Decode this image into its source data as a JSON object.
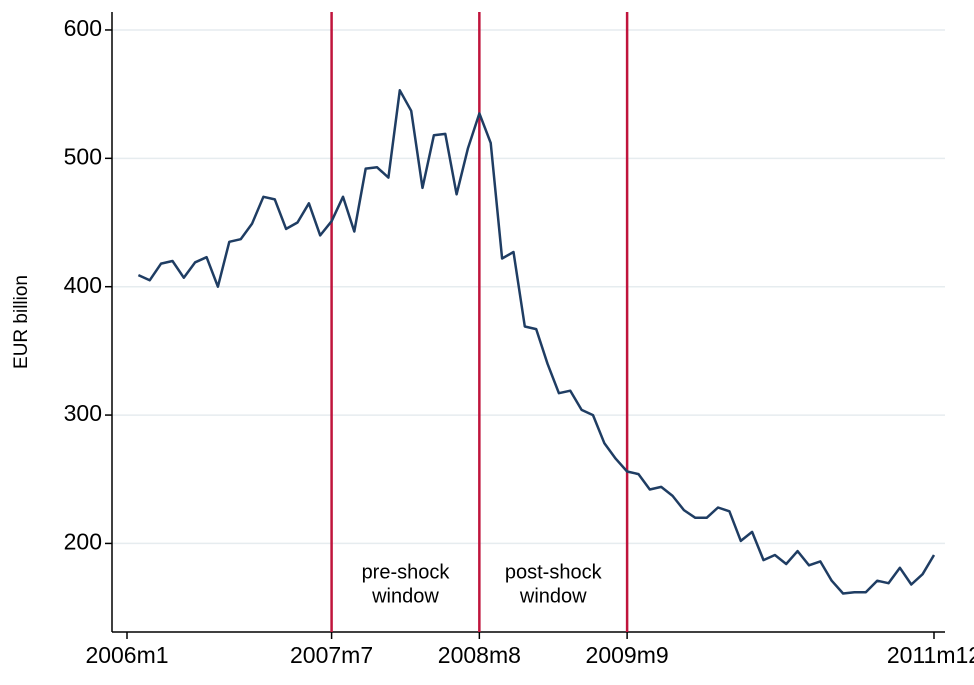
{
  "chart_data": {
    "type": "line",
    "y_label": "EUR billion",
    "categories": [
      "2006m1",
      null,
      null,
      null,
      null,
      null,
      null,
      null,
      null,
      null,
      null,
      null,
      null,
      null,
      null,
      null,
      null,
      null,
      "2007m7",
      null,
      null,
      null,
      null,
      null,
      null,
      null,
      null,
      null,
      null,
      null,
      null,
      "2008m8",
      null,
      null,
      null,
      null,
      null,
      null,
      null,
      null,
      null,
      null,
      null,
      null,
      "2009m9",
      null,
      null,
      null,
      null,
      null,
      null,
      null,
      null,
      null,
      null,
      null,
      null,
      null,
      null,
      null,
      null,
      null,
      null,
      null,
      null,
      null,
      null,
      null,
      null,
      null,
      null,
      "2011m12"
    ],
    "series": [
      {
        "name": "EUR billion",
        "color": "#1f3d63",
        "values": [
          null,
          409,
          405,
          418,
          420,
          407,
          419,
          423,
          400,
          435,
          437,
          449,
          470,
          468,
          445,
          450,
          465,
          440,
          451,
          470,
          443,
          492,
          493,
          485,
          553,
          537,
          477,
          518,
          519,
          472,
          508,
          535,
          512,
          422,
          427,
          369,
          367,
          340,
          317,
          319,
          304,
          300,
          278,
          266,
          256,
          254,
          242,
          244,
          237,
          226,
          220,
          220,
          228,
          225,
          202,
          209,
          187,
          191,
          184,
          194,
          183,
          186,
          171,
          161,
          162,
          162,
          171,
          169,
          181,
          168,
          176,
          191
        ]
      }
    ],
    "ylim": [
      131,
      614
    ],
    "yticks": [
      200,
      300,
      400,
      500,
      600
    ],
    "grid": true,
    "vertical_lines": {
      "color": "#c0143c",
      "at": [
        "2007m7",
        "2008m8",
        "2009m9"
      ]
    },
    "annotations": [
      [
        "pre-shock",
        "window"
      ],
      [
        "post-shock",
        "window"
      ]
    ]
  }
}
